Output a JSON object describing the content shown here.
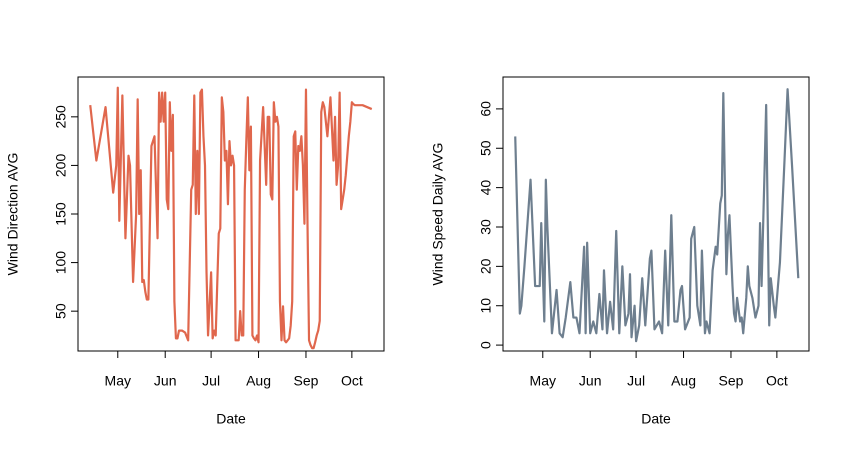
{
  "chart_data": [
    {
      "type": "line",
      "xlabel": "Date",
      "ylabel": "Wind Direction AVG",
      "color": "#e0674d",
      "xlim": [
        95,
        295
      ],
      "ylim": [
        9,
        291
      ],
      "xticks": [
        {
          "value": 121,
          "label": "May"
        },
        {
          "value": 152,
          "label": "Jun"
        },
        {
          "value": 182,
          "label": "Jul"
        },
        {
          "value": 213,
          "label": "Aug"
        },
        {
          "value": 244,
          "label": "Sep"
        },
        {
          "value": 274,
          "label": "Oct"
        }
      ],
      "yticks": [
        50,
        100,
        150,
        200,
        250
      ],
      "x": [
        103,
        107,
        113,
        118,
        120,
        121,
        122,
        124,
        126,
        128,
        129,
        131,
        133,
        134,
        135,
        136,
        137,
        138,
        139,
        140,
        141,
        143,
        145,
        147,
        148,
        149,
        150,
        151,
        152,
        153,
        154,
        155,
        156,
        157,
        158,
        159,
        160,
        161,
        163,
        165,
        167,
        169,
        170,
        171,
        172,
        173,
        174,
        175,
        176,
        177,
        178,
        179,
        180,
        182,
        183,
        184,
        185,
        187,
        188,
        189,
        190,
        191,
        192,
        193,
        194,
        195,
        196,
        197,
        198,
        199,
        200,
        201,
        202,
        203,
        204,
        205,
        206,
        207,
        208,
        209,
        210,
        211,
        212,
        213,
        214,
        216,
        218,
        219,
        220,
        221,
        222,
        223,
        224,
        225,
        226,
        227,
        228,
        229,
        230,
        231,
        232,
        233,
        234,
        235,
        236,
        237,
        238,
        239,
        240,
        241,
        242,
        243,
        244,
        245,
        246,
        247,
        248,
        249,
        250,
        251,
        252,
        253,
        254,
        255,
        256,
        258,
        260,
        262,
        263,
        264,
        265,
        266,
        267,
        268,
        269,
        270,
        271,
        272,
        273,
        274,
        275,
        276,
        281,
        287
      ],
      "values": [
        262,
        205,
        260,
        172,
        200,
        280,
        143,
        272,
        125,
        210,
        200,
        80,
        150,
        268,
        150,
        195,
        80,
        82,
        70,
        62,
        62,
        220,
        230,
        125,
        275,
        245,
        275,
        245,
        275,
        165,
        155,
        265,
        215,
        252,
        60,
        22,
        22,
        30,
        30,
        28,
        20,
        175,
        180,
        272,
        150,
        215,
        150,
        275,
        278,
        230,
        200,
        90,
        25,
        90,
        22,
        30,
        25,
        130,
        135,
        270,
        255,
        205,
        215,
        160,
        225,
        200,
        210,
        200,
        20,
        20,
        20,
        50,
        25,
        25,
        175,
        225,
        270,
        195,
        240,
        25,
        22,
        20,
        25,
        18,
        205,
        260,
        180,
        250,
        250,
        170,
        165,
        265,
        245,
        250,
        240,
        60,
        20,
        55,
        20,
        18,
        20,
        22,
        35,
        60,
        230,
        235,
        175,
        220,
        215,
        230,
        200,
        140,
        278,
        140,
        20,
        15,
        12,
        12,
        18,
        25,
        30,
        40,
        255,
        265,
        260,
        230,
        270,
        205,
        250,
        180,
        200,
        275,
        155,
        165,
        175,
        190,
        210,
        230,
        245,
        265,
        263,
        262,
        262,
        258
      ]
    },
    {
      "type": "line",
      "xlabel": "Date",
      "ylabel": "Wind Speed Daily AVG",
      "color": "#6e7f8f",
      "xlim": [
        95,
        295
      ],
      "ylim": [
        -1.5,
        68.1
      ],
      "xticks": [
        {
          "value": 121,
          "label": "May"
        },
        {
          "value": 152,
          "label": "Jun"
        },
        {
          "value": 182,
          "label": "Jul"
        },
        {
          "value": 213,
          "label": "Aug"
        },
        {
          "value": 244,
          "label": "Sep"
        },
        {
          "value": 274,
          "label": "Oct"
        }
      ],
      "yticks": [
        0,
        10,
        20,
        30,
        40,
        50,
        60
      ],
      "x": [
        103,
        106,
        107,
        109,
        113,
        116,
        119,
        120,
        122,
        123,
        124,
        127,
        130,
        132,
        134,
        136,
        139,
        141,
        143,
        145,
        148,
        149,
        150,
        152,
        154,
        156,
        158,
        160,
        161,
        163,
        165,
        167,
        169,
        171,
        173,
        175,
        177,
        178,
        179,
        181,
        182,
        184,
        186,
        188,
        191,
        192,
        194,
        197,
        199,
        201,
        203,
        205,
        207,
        209,
        211,
        212,
        214,
        217,
        218,
        220,
        222,
        224,
        225,
        227,
        228,
        230,
        232,
        234,
        235,
        237,
        238,
        239,
        241,
        242,
        243,
        245,
        246,
        247,
        248,
        250,
        251,
        252,
        254,
        255,
        256,
        258,
        260,
        262,
        263,
        264,
        266,
        267,
        269,
        270,
        272,
        273,
        276,
        279,
        281,
        284,
        288
      ],
      "values": [
        53,
        8,
        10,
        20,
        42,
        15,
        15,
        31,
        6,
        42,
        30,
        3,
        14,
        3,
        2,
        7,
        16,
        7,
        7,
        3,
        25,
        3,
        26,
        3,
        6,
        3,
        13,
        4,
        19,
        3,
        11,
        4,
        29,
        3,
        20,
        5,
        8,
        18,
        2,
        10,
        1,
        5,
        17,
        5,
        22,
        24,
        4,
        6,
        3,
        24,
        5,
        33,
        6,
        6,
        14,
        15,
        4,
        7,
        27,
        30,
        10,
        5,
        24,
        3,
        6,
        3,
        19,
        25,
        23,
        36,
        38,
        64,
        18,
        28,
        33,
        15,
        8,
        6,
        12,
        6,
        7,
        3,
        12,
        20,
        15,
        12,
        7,
        10,
        31,
        15,
        45,
        61,
        5,
        17,
        10,
        7,
        21,
        47,
        65,
        45,
        17
      ]
    }
  ]
}
